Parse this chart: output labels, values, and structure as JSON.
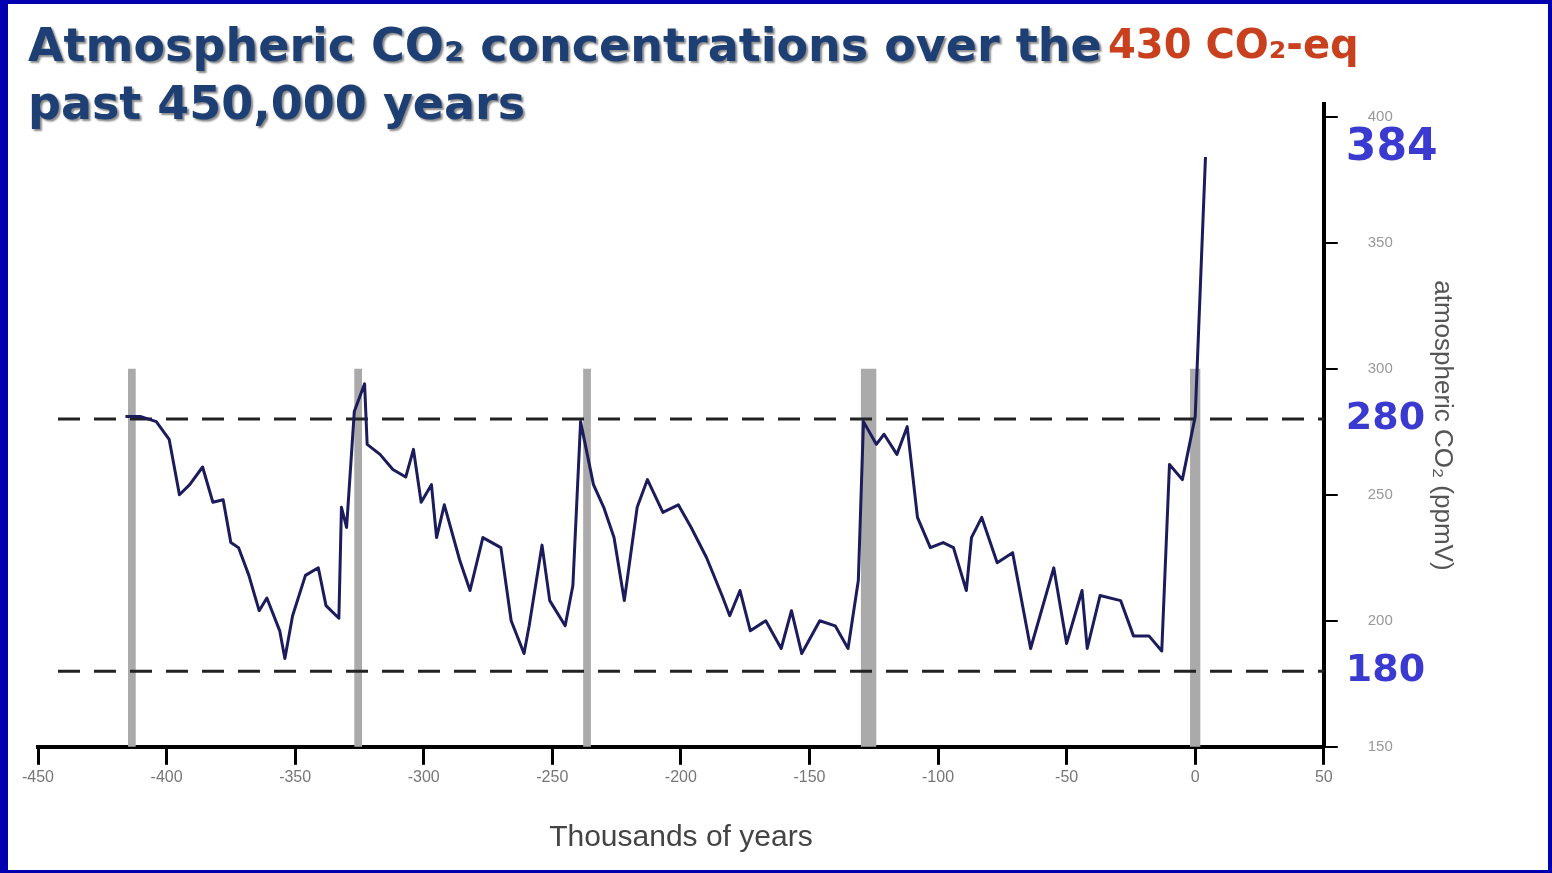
{
  "chart_data": {
    "type": "line",
    "title": "Atmospheric CO₂ concentrations over the past 450,000 years",
    "xlabel": "Thousands of years",
    "ylabel": "atmospheric CO₂ (ppmV)",
    "xlim": [
      -450,
      50
    ],
    "xticks": [
      -450,
      -400,
      -350,
      -300,
      -250,
      -200,
      -150,
      -100,
      -50,
      0,
      50
    ],
    "ylim": [
      150,
      405
    ],
    "yticks": [
      150,
      200,
      250,
      300,
      350,
      400
    ],
    "series": [
      {
        "color": "#1c1c5c",
        "x": [
          -416,
          -410,
          -404,
          -399,
          -395,
          -391,
          -386,
          -382,
          -378,
          -375,
          -372,
          -368,
          -364,
          -361,
          -356,
          -354,
          -351,
          -346,
          -341,
          -338,
          -333,
          -332,
          -330,
          -327,
          -323,
          -322,
          -317,
          -312,
          -307,
          -304,
          -301,
          -297,
          -295,
          -292,
          -286,
          -282,
          -277,
          -270,
          -266,
          -261,
          -259,
          -254,
          -251,
          -245,
          -242,
          -239,
          -234,
          -230,
          -226,
          -222,
          -217,
          -213,
          -207,
          -201,
          -196,
          -190,
          -184,
          -181,
          -177,
          -173,
          -167,
          -161,
          -157,
          -153,
          -146,
          -140,
          -135,
          -131,
          -129,
          -124,
          -121,
          -116,
          -112,
          -108,
          -103,
          -98,
          -94,
          -89,
          -87,
          -83,
          -77,
          -71,
          -64,
          -55,
          -50,
          -44,
          -42,
          -37,
          -29,
          -24,
          -18,
          -13,
          -10,
          -5,
          0,
          4
        ],
        "values": [
          281,
          281,
          279,
          272,
          250,
          254,
          261,
          247,
          248,
          231,
          229,
          218,
          204,
          209,
          196,
          185,
          202,
          218,
          221,
          206,
          201,
          245,
          237,
          283,
          294,
          270,
          266,
          260,
          257,
          268,
          247,
          254,
          233,
          246,
          224,
          212,
          233,
          229,
          200,
          187,
          198,
          230,
          208,
          198,
          214,
          279,
          254,
          245,
          233,
          208,
          245,
          256,
          243,
          246,
          237,
          225,
          210,
          202,
          212,
          196,
          200,
          189,
          204,
          187,
          200,
          198,
          189,
          216,
          279,
          270,
          274,
          266,
          277,
          241,
          229,
          231,
          229,
          212,
          233,
          241,
          223,
          227,
          189,
          221,
          191,
          212,
          189,
          210,
          208,
          194,
          194,
          188,
          262,
          256,
          281,
          384
        ]
      }
    ],
    "ref_lines": [
      {
        "axis": "y",
        "value": 280,
        "label": "280",
        "line_style": "dashed",
        "color": "#222222"
      },
      {
        "axis": "y",
        "value": 180,
        "label": "180",
        "line_style": "dashed",
        "color": "#222222"
      }
    ],
    "bands": [
      {
        "axis": "x",
        "from": -415,
        "to": -412,
        "color": "#aaaaaa"
      },
      {
        "axis": "x",
        "from": -327,
        "to": -324,
        "color": "#aaaaaa"
      },
      {
        "axis": "x",
        "from": -238,
        "to": -235,
        "color": "#aaaaaa"
      },
      {
        "axis": "x",
        "from": -130,
        "to": -124,
        "color": "#aaaaaa"
      },
      {
        "axis": "x",
        "from": -2,
        "to": 2,
        "color": "#aaaaaa"
      }
    ],
    "annotations": [
      "430 CO₂-eq",
      "384"
    ],
    "legend": false,
    "grid": false,
    "marker": "none",
    "line_style": "solid"
  }
}
